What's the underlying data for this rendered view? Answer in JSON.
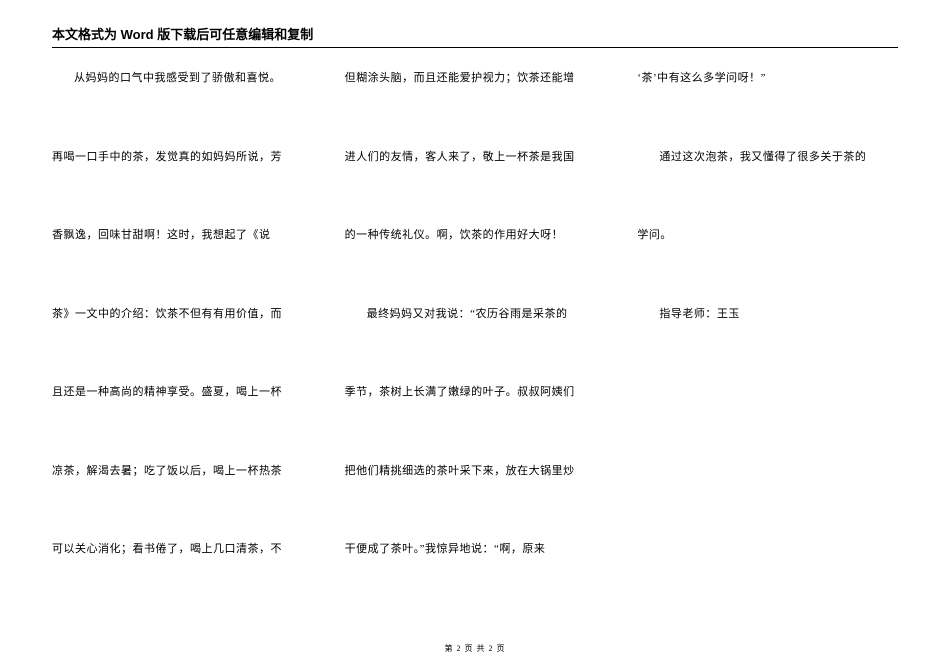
{
  "header": "本文格式为 Word 版下载后可任意编辑和复制",
  "footer": "第 2 页 共 2 页",
  "columns": [
    {
      "lines": [
        {
          "text": "从妈妈的口气中我感受到了骄傲和喜悦。",
          "indent": true
        },
        {
          "text": "再喝一口手中的茶，发觉真的如妈妈所说，芳",
          "indent": false
        },
        {
          "text": "香飘逸，回味甘甜啊！这时，我想起了《说",
          "indent": false
        },
        {
          "text": "茶》一文中的介绍：饮茶不但有有用价值，而",
          "indent": false
        },
        {
          "text": "且还是一种高尚的精神享受。盛夏，喝上一杯",
          "indent": false
        },
        {
          "text": "凉茶，解渴去暑；吃了饭以后，喝上一杯热茶",
          "indent": false
        },
        {
          "text": "可以关心消化；看书倦了，喝上几口清茶，不",
          "indent": false
        }
      ]
    },
    {
      "lines": [
        {
          "text": "但糊涂头脑，而且还能爱护视力；饮茶还能增",
          "indent": false
        },
        {
          "text": "进人们的友情，客人来了，敬上一杯茶是我国",
          "indent": false
        },
        {
          "text": "的一种传统礼仪。啊，饮茶的作用好大呀！",
          "indent": false
        },
        {
          "text": "最终妈妈又对我说：“农历谷雨是采茶的",
          "indent": true
        },
        {
          "text": "季节，茶树上长满了嫩绿的叶子。叔叔阿姨们",
          "indent": false
        },
        {
          "text": "把他们精挑细选的茶叶采下来，放在大锅里炒",
          "indent": false
        },
        {
          "text": "干便成了茶叶。”我惊异地说：“啊，原来",
          "indent": false
        }
      ]
    },
    {
      "lines": [
        {
          "text": "‘茶’中有这么多学问呀！”",
          "indent": false
        },
        {
          "text": "通过这次泡茶，我又懂得了很多关于茶的",
          "indent": true
        },
        {
          "text": "学问。",
          "indent": false
        },
        {
          "text": "指导老师：王玉",
          "indent": true
        }
      ]
    }
  ]
}
